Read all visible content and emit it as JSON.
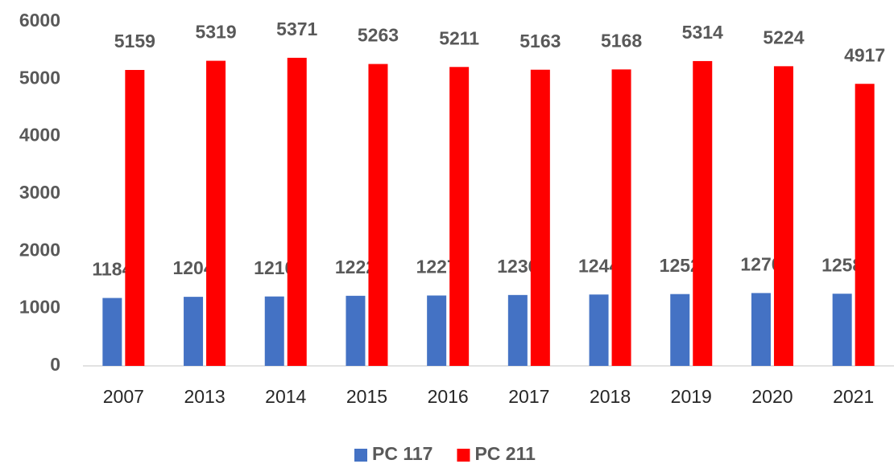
{
  "chart_data": {
    "type": "bar",
    "categories": [
      "2007",
      "2013",
      "2014",
      "2015",
      "2016",
      "2017",
      "2018",
      "2019",
      "2020",
      "2021"
    ],
    "series": [
      {
        "name": "PC 117",
        "color": "#4472c4",
        "values": [
          1184,
          1204,
          1210,
          1222,
          1227,
          1236,
          1244,
          1252,
          1270,
          1258
        ]
      },
      {
        "name": "PC 211",
        "color": "#ff0000",
        "values": [
          5159,
          5319,
          5371,
          5263,
          5211,
          5163,
          5168,
          5314,
          5224,
          4917
        ]
      }
    ],
    "ylim": [
      0,
      6000
    ],
    "yticks": [
      0,
      1000,
      2000,
      3000,
      4000,
      5000,
      6000
    ],
    "grid": false,
    "legend": "bottom"
  }
}
